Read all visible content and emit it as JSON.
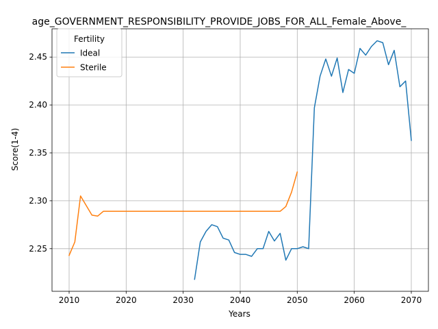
{
  "chart_data": {
    "type": "line",
    "title": "age_GOVERNMENT_RESPONSIBILITY_PROVIDE_JOBS_FOR_ALL_Female_Above_",
    "xlabel": "Years",
    "ylabel": "Score(1-4)",
    "xlim": [
      2007,
      2073
    ],
    "ylim": [
      2.2055,
      2.4795
    ],
    "xticks": [
      2010,
      2020,
      2030,
      2040,
      2050,
      2060,
      2070
    ],
    "yticks": [
      2.25,
      2.3,
      2.35,
      2.4,
      2.45
    ],
    "ytick_labels": [
      "2.25",
      "2.30",
      "2.35",
      "2.40",
      "2.45"
    ],
    "grid": true,
    "legend": {
      "title": "Fertility",
      "position": "top-left"
    },
    "series": [
      {
        "name": "Ideal",
        "color": "#1f77b4",
        "x": [
          2032,
          2033,
          2034,
          2035,
          2036,
          2037,
          2038,
          2039,
          2040,
          2041,
          2042,
          2043,
          2044,
          2045,
          2046,
          2047,
          2048,
          2049,
          2050,
          2051,
          2052,
          2053,
          2054,
          2055,
          2056,
          2057,
          2058,
          2059,
          2060,
          2061,
          2062,
          2063,
          2064,
          2065,
          2066,
          2067,
          2068,
          2069,
          2070
        ],
        "y": [
          2.218,
          2.257,
          2.268,
          2.275,
          2.273,
          2.261,
          2.259,
          2.246,
          2.244,
          2.244,
          2.242,
          2.25,
          2.25,
          2.268,
          2.258,
          2.266,
          2.238,
          2.25,
          2.25,
          2.252,
          2.25,
          2.397,
          2.43,
          2.448,
          2.43,
          2.449,
          2.413,
          2.437,
          2.433,
          2.459,
          2.452,
          2.461,
          2.467,
          2.465,
          2.442,
          2.457,
          2.419,
          2.425,
          2.363
        ]
      },
      {
        "name": "Sterile",
        "color": "#ff7f0e",
        "x": [
          2010,
          2011,
          2012,
          2013,
          2014,
          2015,
          2016,
          2017,
          2018,
          2019,
          2020,
          2021,
          2022,
          2023,
          2024,
          2025,
          2026,
          2027,
          2028,
          2029,
          2030,
          2031,
          2032,
          2033,
          2034,
          2035,
          2036,
          2037,
          2038,
          2039,
          2040,
          2041,
          2042,
          2043,
          2044,
          2045,
          2046,
          2047,
          2048,
          2049,
          2050
        ],
        "y": [
          2.243,
          2.257,
          2.305,
          2.295,
          2.285,
          2.284,
          2.289,
          2.289,
          2.289,
          2.289,
          2.289,
          2.289,
          2.289,
          2.289,
          2.289,
          2.289,
          2.289,
          2.289,
          2.289,
          2.289,
          2.289,
          2.289,
          2.289,
          2.289,
          2.289,
          2.289,
          2.289,
          2.289,
          2.289,
          2.289,
          2.289,
          2.289,
          2.289,
          2.289,
          2.289,
          2.289,
          2.289,
          2.289,
          2.294,
          2.309,
          2.33
        ]
      }
    ]
  }
}
